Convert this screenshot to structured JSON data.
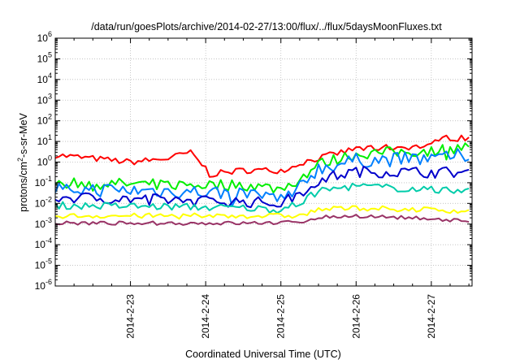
{
  "chart_data": {
    "type": "line",
    "title": "/data/run/goesPlots/archive/2014-02-27/13:00/flux/../flux/5daysMoonFluxes.txt",
    "xlabel": "Coordinated Universal Time (UTC)",
    "ylabel": {
      "base": "protons/cm",
      "sup": "2",
      "rest": "-s-sr-MeV"
    },
    "y_scale": "log",
    "ylim": [
      1e-06,
      1000000.0
    ],
    "xlim": [
      "2014-02-22T00:00",
      "2014-02-27T13:00"
    ],
    "y_ticks": [
      {
        "base": "10",
        "exp": "-6",
        "value": 1e-06
      },
      {
        "base": "10",
        "exp": "-5",
        "value": 1e-05
      },
      {
        "base": "10",
        "exp": "-4",
        "value": 0.0001
      },
      {
        "base": "10",
        "exp": "-3",
        "value": 0.001
      },
      {
        "base": "10",
        "exp": "-2",
        "value": 0.01
      },
      {
        "base": "10",
        "exp": "-1",
        "value": 0.1
      },
      {
        "base": "10",
        "exp": "0",
        "value": 1
      },
      {
        "base": "10",
        "exp": "1",
        "value": 10
      },
      {
        "base": "10",
        "exp": "2",
        "value": 100
      },
      {
        "base": "10",
        "exp": "3",
        "value": 1000
      },
      {
        "base": "10",
        "exp": "4",
        "value": 10000
      },
      {
        "base": "10",
        "exp": "5",
        "value": 100000
      },
      {
        "base": "10",
        "exp": "6",
        "value": 1000000
      }
    ],
    "x_ticks": [
      {
        "label": "2014-2-23",
        "value": "2014-02-23T00:00"
      },
      {
        "label": "2014-2-24",
        "value": "2014-02-24T00:00"
      },
      {
        "label": "2014-2-25",
        "value": "2014-02-25T00:00"
      },
      {
        "label": "2014-2-26",
        "value": "2014-02-26T00:00"
      },
      {
        "label": "2014-2-27",
        "value": "2014-02-27T00:00"
      }
    ],
    "grid": true,
    "series": [
      {
        "color": "#ff0000",
        "noise": 0.3,
        "points": [
          [
            "2014-02-22T00:00",
            2.2
          ],
          [
            "2014-02-22T12:00",
            1.5
          ],
          [
            "2014-02-23T00:00",
            1.0
          ],
          [
            "2014-02-23T12:00",
            1.5
          ],
          [
            "2014-02-23T19:00",
            3.0
          ],
          [
            "2014-02-24T00:00",
            0.5
          ],
          [
            "2014-02-24T01:00",
            0.25
          ],
          [
            "2014-02-24T12:00",
            0.4
          ],
          [
            "2014-02-25T00:00",
            0.4
          ],
          [
            "2014-02-25T04:00",
            0.6
          ],
          [
            "2014-02-25T06:00",
            0.9
          ],
          [
            "2014-02-26T00:00",
            4.5
          ],
          [
            "2014-02-27T00:00",
            6
          ],
          [
            "2014-02-27T02:00",
            15
          ],
          [
            "2014-02-27T13:00",
            14
          ]
        ]
      },
      {
        "color": "#00ee00",
        "noise": 0.55,
        "points": [
          [
            "2014-02-22T00:00",
            0.1
          ],
          [
            "2014-02-23T12:00",
            0.08
          ],
          [
            "2014-02-24T12:00",
            0.08
          ],
          [
            "2014-02-25T00:00",
            0.05
          ],
          [
            "2014-02-25T06:00",
            0.15
          ],
          [
            "2014-02-25T12:00",
            0.8
          ],
          [
            "2014-02-26T00:00",
            2.5
          ],
          [
            "2014-02-27T00:00",
            3.5
          ],
          [
            "2014-02-27T13:00",
            6
          ]
        ]
      },
      {
        "color": "#0080ff",
        "noise": 0.7,
        "points": [
          [
            "2014-02-22T00:00",
            0.05
          ],
          [
            "2014-02-23T12:00",
            0.04
          ],
          [
            "2014-02-24T12:00",
            0.03
          ],
          [
            "2014-02-25T00:00",
            0.02
          ],
          [
            "2014-02-25T06:00",
            0.08
          ],
          [
            "2014-02-25T12:00",
            0.5
          ],
          [
            "2014-02-26T00:00",
            1.2
          ],
          [
            "2014-02-27T00:00",
            1.5
          ],
          [
            "2014-02-27T13:00",
            2.3
          ]
        ]
      },
      {
        "color": "#0000cc",
        "noise": 0.55,
        "points": [
          [
            "2014-02-22T00:00",
            0.02
          ],
          [
            "2014-02-23T12:00",
            0.015
          ],
          [
            "2014-02-24T12:00",
            0.012
          ],
          [
            "2014-02-25T00:00",
            0.01
          ],
          [
            "2014-02-25T06:00",
            0.03
          ],
          [
            "2014-02-25T12:00",
            0.15
          ],
          [
            "2014-02-26T00:00",
            0.35
          ],
          [
            "2014-02-27T00:00",
            0.32
          ],
          [
            "2014-02-27T13:00",
            0.32
          ]
        ]
      },
      {
        "color": "#00ccaa",
        "noise": 0.35,
        "points": [
          [
            "2014-02-22T00:00",
            0.008
          ],
          [
            "2014-02-23T12:00",
            0.007
          ],
          [
            "2014-02-24T12:00",
            0.006
          ],
          [
            "2014-02-25T00:00",
            0.005
          ],
          [
            "2014-02-25T06:00",
            0.01
          ],
          [
            "2014-02-25T12:00",
            0.04
          ],
          [
            "2014-02-26T00:00",
            0.07
          ],
          [
            "2014-02-27T00:00",
            0.045
          ],
          [
            "2014-02-27T13:00",
            0.035
          ]
        ]
      },
      {
        "color": "#ffff00",
        "noise": 0.25,
        "points": [
          [
            "2014-02-22T00:00",
            0.0025
          ],
          [
            "2014-02-24T12:00",
            0.0025
          ],
          [
            "2014-02-25T06:00",
            0.0025
          ],
          [
            "2014-02-25T12:00",
            0.005
          ],
          [
            "2014-02-26T00:00",
            0.006
          ],
          [
            "2014-02-27T00:00",
            0.005
          ],
          [
            "2014-02-27T13:00",
            0.004
          ]
        ]
      },
      {
        "color": "#993366",
        "noise": 0.18,
        "points": [
          [
            "2014-02-22T00:00",
            0.0011
          ],
          [
            "2014-02-24T12:00",
            0.0011
          ],
          [
            "2014-02-25T06:00",
            0.0012
          ],
          [
            "2014-02-25T12:00",
            0.0022
          ],
          [
            "2014-02-26T00:00",
            0.0025
          ],
          [
            "2014-02-27T00:00",
            0.0018
          ],
          [
            "2014-02-27T13:00",
            0.0014
          ]
        ]
      }
    ]
  }
}
